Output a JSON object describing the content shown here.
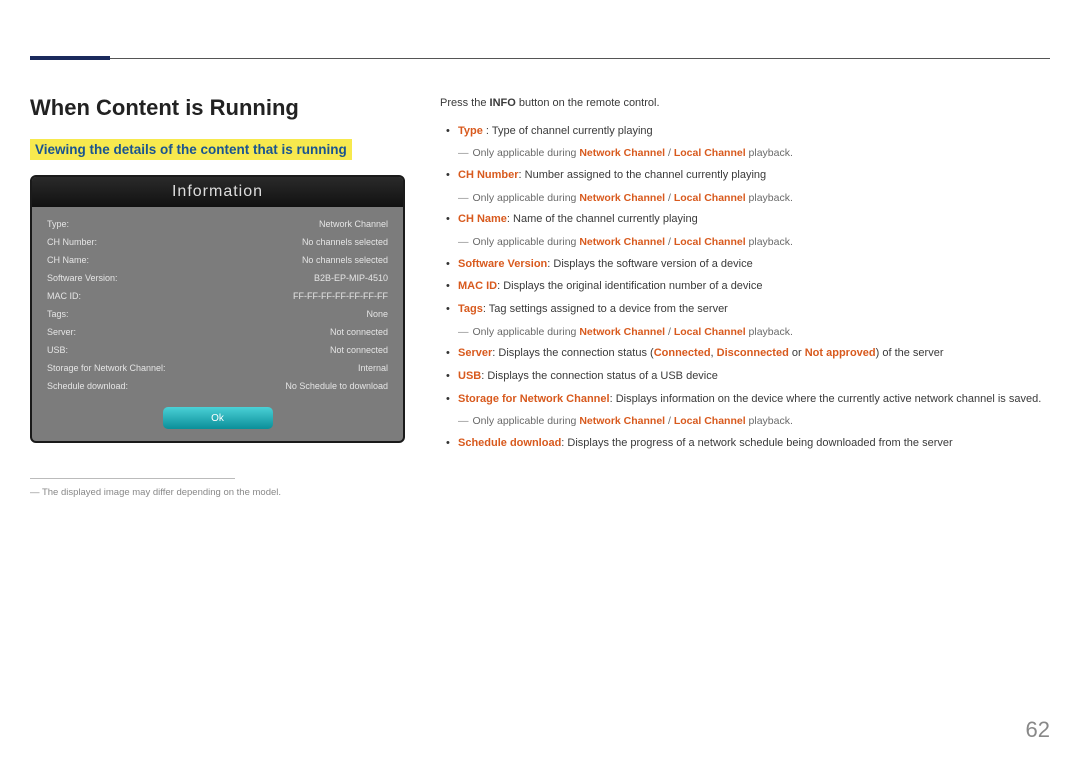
{
  "page": {
    "title": "When Content is Running",
    "subhead": "Viewing the details of the content that is running",
    "pageNumber": "62",
    "footnote": "The displayed image may differ depending on the model."
  },
  "panel": {
    "header": "Information",
    "rows": [
      {
        "label": "Type:",
        "value": "Network Channel"
      },
      {
        "label": "CH Number:",
        "value": "No channels selected"
      },
      {
        "label": "CH Name:",
        "value": "No channels selected"
      },
      {
        "label": "Software Version:",
        "value": "B2B-EP-MIP-4510"
      },
      {
        "label": "MAC ID:",
        "value": "FF-FF-FF-FF-FF-FF-FF"
      },
      {
        "label": "Tags:",
        "value": "None"
      },
      {
        "label": "Server:",
        "value": "Not connected"
      },
      {
        "label": "USB:",
        "value": "Not connected"
      },
      {
        "label": "Storage for Network Channel:",
        "value": "Internal"
      },
      {
        "label": "Schedule download:",
        "value": "No Schedule to download"
      }
    ],
    "okLabel": "Ok"
  },
  "intro": {
    "prefix": "Press the ",
    "bold": "INFO",
    "suffix": " button on the remote control."
  },
  "applicableNote": {
    "prefix": "Only applicable during ",
    "nc": "Network Channel",
    "sep": " / ",
    "lc": "Local Channel",
    "suffix": " playback."
  },
  "items": {
    "type": {
      "term": "Type",
      "sep": " : ",
      "desc": "Type of channel currently playing"
    },
    "chNumber": {
      "term": "CH Number",
      "sep": ": ",
      "desc": "Number assigned to the channel currently playing"
    },
    "chName": {
      "term": "CH Name",
      "sep": ": ",
      "desc": "Name of the channel currently playing"
    },
    "swVersion": {
      "term": "Software Version",
      "sep": ": ",
      "desc": "Displays the software version of a device"
    },
    "macId": {
      "term": "MAC ID",
      "sep": ": ",
      "desc": "Displays the original identification number of a device"
    },
    "tags": {
      "term": "Tags",
      "sep": ": ",
      "desc": "Tag settings assigned to a device from the server"
    },
    "server": {
      "term": "Server",
      "sep": ": ",
      "descPrefix": "Displays the connection status (",
      "s1": "Connected",
      "c1": ", ",
      "s2": "Disconnected",
      "c2": " or ",
      "s3": "Not approved",
      "descSuffix": ") of the server"
    },
    "usb": {
      "term": "USB",
      "sep": ": ",
      "desc": "Displays the connection status of a USB device"
    },
    "storage": {
      "term": "Storage for Network Channel",
      "sep": ": ",
      "desc": "Displays information on the device where the currently active network channel is saved."
    },
    "schedule": {
      "term": "Schedule download",
      "sep": ": ",
      "desc": "Displays the progress of a network schedule being downloaded from the server"
    }
  }
}
